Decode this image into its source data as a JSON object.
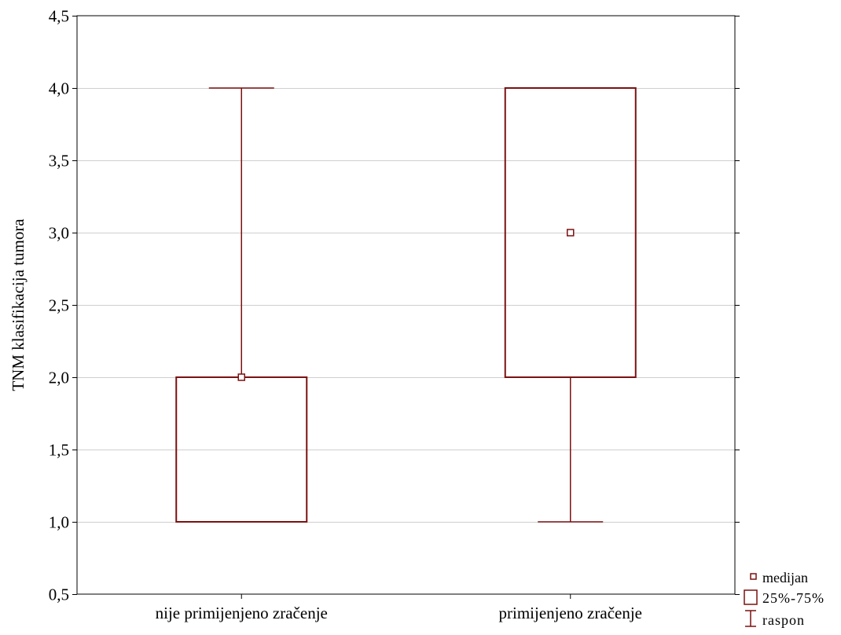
{
  "chart_data": {
    "type": "box",
    "title": "",
    "xlabel": "",
    "ylabel": "TNM klasifikacija tumora",
    "ylim": [
      0.5,
      4.5
    ],
    "yticks": [
      0.5,
      1.0,
      1.5,
      2.0,
      2.5,
      3.0,
      3.5,
      4.0,
      4.5
    ],
    "ytick_labels": [
      "0,5",
      "1,0",
      "1,5",
      "2,0",
      "2,5",
      "3,0",
      "3,5",
      "4,0",
      "4,5"
    ],
    "grid": true,
    "categories": [
      "nije primijenjeno zračenje",
      "primijenjeno zračenje"
    ],
    "boxes": [
      {
        "category": "nije primijenjeno zračenje",
        "median": 2.0,
        "q1": 1.0,
        "q3": 2.0,
        "min": 1.0,
        "max": 4.0
      },
      {
        "category": "primijenjeno zračenje",
        "median": 3.0,
        "q1": 2.0,
        "q3": 4.0,
        "min": 1.0,
        "max": 4.0
      }
    ],
    "legend": {
      "position": "bottom-right, outside plot",
      "entries": [
        {
          "symbol": "median-marker",
          "label": "medijan"
        },
        {
          "symbol": "box",
          "label": "25%-75%"
        },
        {
          "symbol": "whisker",
          "label": "raspon"
        }
      ]
    },
    "colors": {
      "series": "#7b1111",
      "grid": "#cfcfcf",
      "frame": "#000000"
    }
  }
}
